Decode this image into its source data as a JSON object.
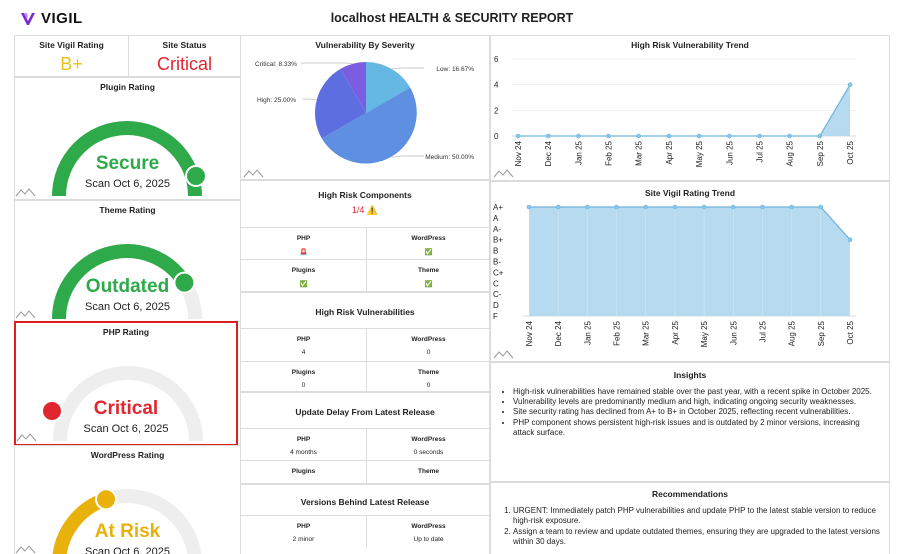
{
  "header": {
    "brand": "VIGIL",
    "title": "localhost HEALTH & SECURITY REPORT"
  },
  "summary": {
    "site_rating_label": "Site Vigil Rating",
    "site_rating_value": "B+",
    "site_status_label": "Site Status",
    "site_status_value": "Critical"
  },
  "gauges": [
    {
      "title": "Plugin Rating",
      "word": "Secure",
      "scan": "Scan Oct 6, 2025",
      "color": "#2eaa4a",
      "fraction": 1.0
    },
    {
      "title": "Theme Rating",
      "word": "Outdated",
      "scan": "Scan Oct 6, 2025",
      "color": "#2eaa4a",
      "fraction": 0.82
    },
    {
      "title": "PHP Rating",
      "word": "Critical",
      "scan": "Scan Oct 6, 2025",
      "color": "#e0262f",
      "fraction": 0.0
    },
    {
      "title": "WordPress Rating",
      "word": "At Risk",
      "scan": "Scan Oct 6, 2025",
      "color": "#e8b10c",
      "fraction": 0.4
    }
  ],
  "severity": {
    "title": "Vulnerability By Severity"
  },
  "high_risk_components": {
    "title": "High Risk Components",
    "value": "1/4 ⚠️",
    "cells": [
      {
        "label": "PHP",
        "value": "🚨"
      },
      {
        "label": "WordPress",
        "value": "✅"
      },
      {
        "label": "Plugins",
        "value": "✅"
      },
      {
        "label": "Theme",
        "value": "✅"
      }
    ]
  },
  "high_risk_vulns": {
    "title": "High Risk Vulnerabilities",
    "cells": [
      {
        "label": "PHP",
        "value": "4"
      },
      {
        "label": "WordPress",
        "value": "0"
      },
      {
        "label": "Plugins",
        "value": "0"
      },
      {
        "label": "Theme",
        "value": "0"
      }
    ]
  },
  "update_delay": {
    "title": "Update Delay From Latest Release",
    "cells": [
      {
        "label": "PHP",
        "value": "4 months"
      },
      {
        "label": "WordPress",
        "value": "0 seconds"
      },
      {
        "label": "Plugins",
        "value": ""
      },
      {
        "label": "Theme",
        "value": ""
      }
    ]
  },
  "versions_behind": {
    "title": "Versions Behind Latest Release",
    "cells": [
      {
        "label": "PHP",
        "value": "2 minor"
      },
      {
        "label": "WordPress",
        "value": "Up to date"
      }
    ]
  },
  "insights": {
    "title": "Insights",
    "items": [
      "High-risk vulnerabilities have remained stable over the past year, with a recent spike in October 2025.",
      "Vulnerability levels are predominantly medium and high, indicating ongoing security weaknesses.",
      "Site security rating has declined from A+ to B+ in October 2025, reflecting recent vulnerabilities.",
      "PHP component shows persistent high-risk issues and is outdated by 2 minor versions, increasing attack surface."
    ]
  },
  "recommendations": {
    "title": "Recommendations",
    "items": [
      "URGENT: Immediately patch PHP vulnerabilities and update PHP to the latest stable version to reduce high-risk exposure.",
      "Assign a team to review and update outdated themes, ensuring they are upgraded to the latest versions within 30 days."
    ]
  },
  "chart_data": [
    {
      "type": "pie",
      "title": "Vulnerability By Severity",
      "categories": [
        "Critical",
        "High",
        "Medium",
        "Low"
      ],
      "values": [
        8.33,
        25.0,
        50.0,
        16.67
      ],
      "labels": [
        "Critical: 8.33%",
        "High: 25.00%",
        "Medium: 50.00%",
        "Low: 16.67%"
      ],
      "colors": [
        "#7b5ee0",
        "#5d6ee0",
        "#5e8fe0",
        "#65b8e3"
      ]
    },
    {
      "type": "area",
      "title": "High Risk Vulnerability Trend",
      "categories": [
        "Nov 24",
        "Dec 24",
        "Jan 25",
        "Feb 25",
        "Mar 25",
        "Apr 25",
        "May 25",
        "Jun 25",
        "Jul 25",
        "Aug 25",
        "Sep 25",
        "Oct 25"
      ],
      "values": [
        0,
        0,
        0,
        0,
        0,
        0,
        0,
        0,
        0,
        0,
        0,
        4
      ],
      "yticks": [
        "0",
        "2",
        "4",
        "6"
      ],
      "ylim": [
        0,
        6
      ],
      "color": "#8cc6e6"
    },
    {
      "type": "area",
      "title": "Site Vigil Rating Trend",
      "categories": [
        "Nov 24",
        "Dec 24",
        "Jan 25",
        "Feb 25",
        "Mar 25",
        "Apr 25",
        "May 25",
        "Jun 25",
        "Jul 25",
        "Aug 25",
        "Sep 25",
        "Oct 25"
      ],
      "grades": [
        "A+",
        "A",
        "A-",
        "B+",
        "B",
        "B-",
        "C+",
        "C",
        "C-",
        "D",
        "F"
      ],
      "values": [
        "A+",
        "A+",
        "A+",
        "A+",
        "A+",
        "A+",
        "A+",
        "A+",
        "A+",
        "A+",
        "A+",
        "B+"
      ],
      "color": "#8cc6e6"
    }
  ]
}
